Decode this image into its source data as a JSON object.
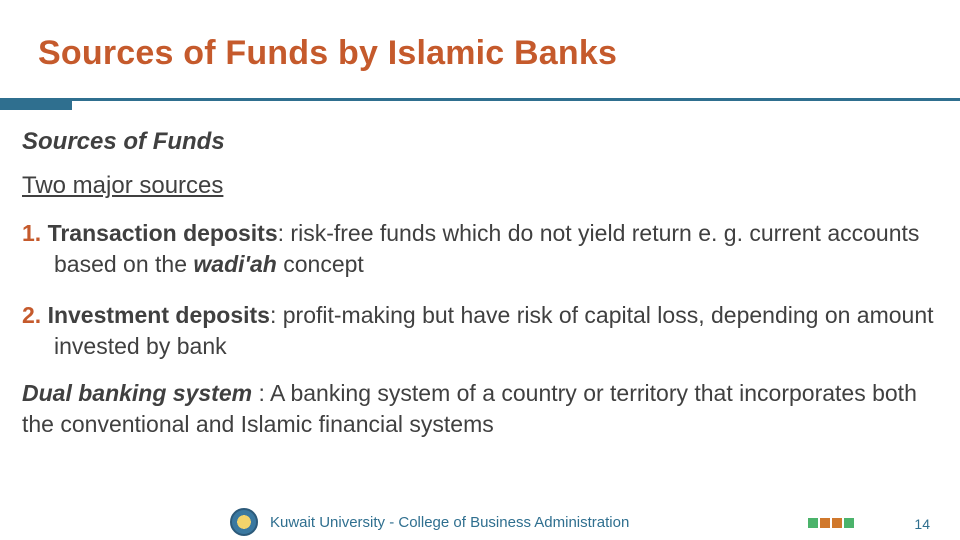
{
  "colors": {
    "title": "#c55a2c",
    "rule_thin": "#2f6f8f",
    "rule_thick": "#2f6f8f",
    "body": "#404040",
    "footer_text": "#2f6f8f",
    "page_num": "#2f6f8f",
    "logo2_a": "#4bb36b",
    "logo2_b": "#d0782c"
  },
  "title": "Sources of Funds by Islamic Banks",
  "subtitle": "Sources of Funds",
  "subtitle2": "Two major sources",
  "items": [
    {
      "num": "1.",
      "lead": "Transaction deposits",
      "body_before": ": risk-free funds which do not yield return e. g. current accounts based on the ",
      "ital": "wadi'ah",
      "body_after": " concept"
    },
    {
      "num": "2.",
      "lead": "Investment deposits",
      "body_before": ": profit-making but have risk of capital loss, depending on amount invested by bank",
      "ital": "",
      "body_after": ""
    }
  ],
  "dual": {
    "lead": "Dual banking system ",
    "body": ": A banking system of a  country or territory that incorporates both the  conventional and Islamic financial systems"
  },
  "footer": {
    "text": "Kuwait University - College of Business Administration",
    "page": "14"
  }
}
